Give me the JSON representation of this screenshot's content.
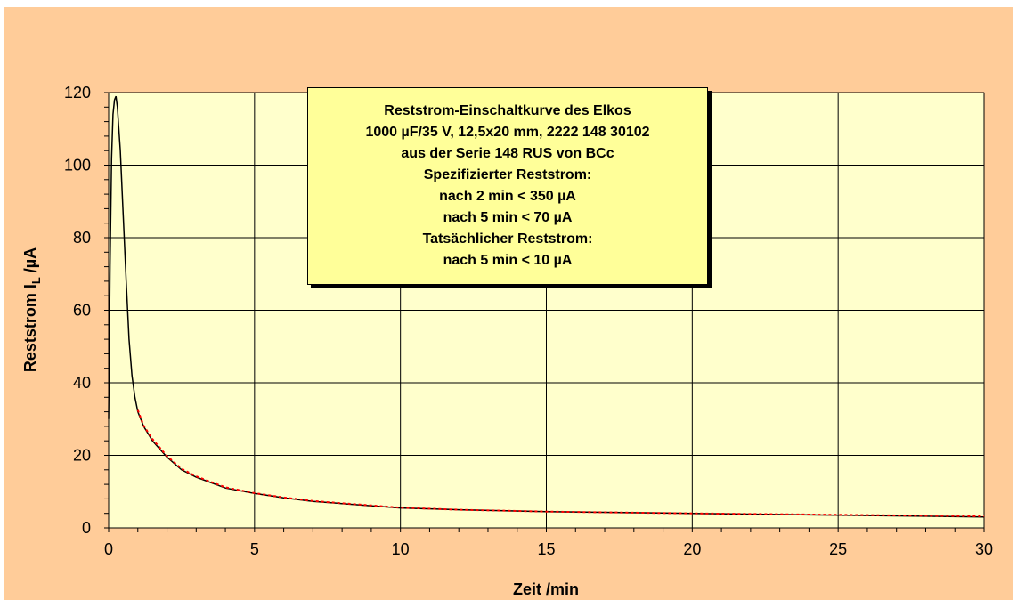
{
  "colors": {
    "outer_background": "#ffcc99",
    "plot_background": "#ffffcc",
    "annotation_background": "#ffff99",
    "measured_curve": "#000000",
    "fit_curve": "#ff0000"
  },
  "annotation": {
    "lines": [
      "Reststrom-Einschaltkurve des Elkos",
      "1000 µF/35 V, 12,5x20 mm, 2222 148 30102",
      "aus der Serie 148 RUS von BCc",
      "Spezifizierter Reststrom:",
      "nach 2 min < 350 µA",
      "nach 5 min < 70 µA",
      "Tatsächlicher Reststrom:",
      "nach 5 min < 10 µA"
    ]
  },
  "chart_data": {
    "type": "line",
    "title": "",
    "xlabel": "Zeit /min",
    "ylabel_main": "Reststrom I",
    "ylabel_sub": "L",
    "ylabel_unit": " /µA",
    "xlim": [
      0,
      30
    ],
    "ylim": [
      0,
      120
    ],
    "x_ticks": [
      0,
      5,
      10,
      15,
      20,
      25,
      30
    ],
    "x_tick_labels": [
      "0",
      "5",
      "10",
      "15",
      "20",
      "25",
      "30"
    ],
    "y_ticks": [
      0,
      20,
      40,
      60,
      80,
      100,
      120
    ],
    "y_tick_labels": [
      "0",
      "20",
      "40",
      "60",
      "80",
      "100",
      "120"
    ],
    "grid": true,
    "legend": "none",
    "series": [
      {
        "style": "solid-black",
        "x": [
          0,
          0.05,
          0.1,
          0.15,
          0.2,
          0.25,
          0.3,
          0.4,
          0.5,
          0.6,
          0.7,
          0.8,
          0.9,
          1.0,
          1.2,
          1.5,
          2,
          2.5,
          3,
          4,
          5,
          6,
          7,
          8,
          10,
          12,
          15,
          20,
          25,
          30
        ],
        "y": [
          30,
          72,
          102,
          114,
          118,
          119,
          116,
          104,
          86,
          68,
          52,
          42,
          36,
          32,
          28,
          24,
          19.5,
          16,
          14,
          11,
          9.5,
          8.3,
          7.3,
          6.7,
          5.5,
          5.0,
          4.5,
          4.0,
          3.5,
          3.0
        ]
      },
      {
        "style": "dotted-red",
        "x": [
          1.0,
          1.2,
          1.5,
          2,
          2.5,
          3,
          4,
          5,
          6,
          7,
          8,
          10,
          12,
          15,
          20,
          25,
          30
        ],
        "y": [
          32.5,
          28.2,
          24.5,
          19.8,
          16.3,
          14.2,
          11.2,
          9.6,
          8.4,
          7.4,
          6.8,
          5.6,
          5.0,
          4.5,
          4.0,
          3.6,
          3.2
        ]
      }
    ]
  }
}
